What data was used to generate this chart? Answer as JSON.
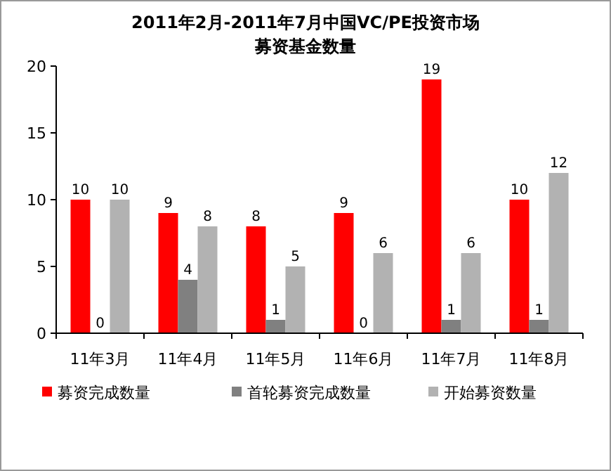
{
  "chart_data": {
    "type": "bar",
    "title": "2011年2月-2011年7月中国VC/PE投资市场",
    "subtitle": "募资基金数量",
    "categories": [
      "11年3月",
      "11年4月",
      "11年5月",
      "11年6月",
      "11年7月",
      "11年8月"
    ],
    "series": [
      {
        "name": "募资完成数量",
        "color": "#ff0000",
        "values": [
          10,
          9,
          8,
          9,
          19,
          10
        ]
      },
      {
        "name": "首轮募资完成数量",
        "color": "#808080",
        "values": [
          0,
          4,
          1,
          0,
          1,
          1
        ]
      },
      {
        "name": "开始募资数量",
        "color": "#b2b2b2",
        "values": [
          10,
          8,
          5,
          6,
          6,
          12
        ]
      }
    ],
    "ylim": [
      0,
      20
    ],
    "yticks": [
      0,
      5,
      10,
      15,
      20
    ],
    "grid": false,
    "legend": "bottom",
    "data_labels": true
  }
}
